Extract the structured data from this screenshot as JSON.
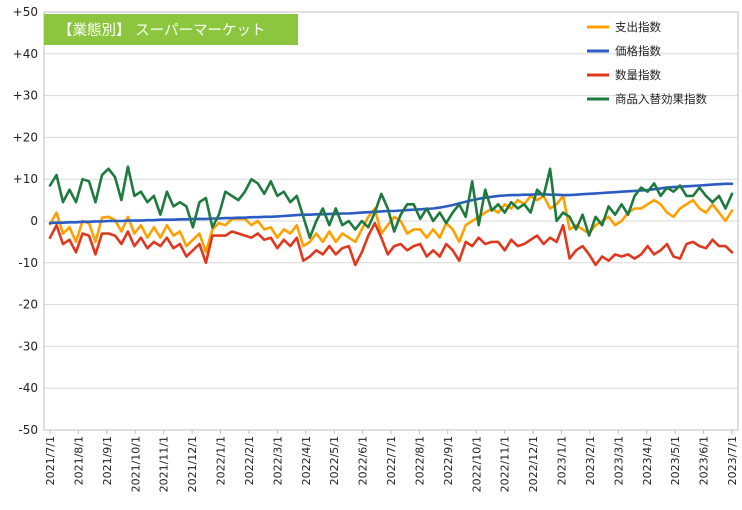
{
  "chart_data": {
    "type": "line",
    "title": "【業態別】 スーパーマーケット",
    "xlabel": "",
    "ylabel": "",
    "ylim": [
      -50,
      50
    ],
    "yticks": [
      -50,
      -40,
      -30,
      -20,
      -10,
      0,
      10,
      20,
      30,
      40,
      50
    ],
    "ytick_labels": [
      "-50",
      "-40",
      "-30",
      "-20",
      "-10",
      "0",
      "+10",
      "+20",
      "+30",
      "+40",
      "+50"
    ],
    "x_tick_labels": [
      "2021/7/1",
      "2021/8/1",
      "2021/9/1",
      "2021/10/1",
      "2021/11/1",
      "2021/12/1",
      "2022/1/1",
      "2022/2/1",
      "2022/3/1",
      "2022/4/1",
      "2022/5/1",
      "2022/6/1",
      "2022/7/1",
      "2022/8/1",
      "2022/9/1",
      "2022/10/1",
      "2022/11/1",
      "2022/12/1",
      "2023/1/1",
      "2023/2/1",
      "2023/3/1",
      "2023/4/1",
      "2023/5/1",
      "2023/6/1",
      "2023/7/1"
    ],
    "x_count": 106,
    "grid": "horizontal",
    "legend_position": "top-right",
    "colors": {
      "title_bg": "#8cc63f",
      "grid": "#d9d9d9",
      "axis": "#bfbfbf"
    },
    "series": [
      {
        "name": "支出指数",
        "color": "#ffa000",
        "values": [
          -0.8,
          2,
          -3,
          -1.5,
          -5,
          0,
          -0.5,
          -5,
          0.8,
          1,
          0.2,
          -2.5,
          1,
          -3,
          -1,
          -4,
          -1.5,
          -4,
          -1,
          -3.5,
          -2.5,
          -6,
          -4.5,
          -3,
          -7.5,
          -2,
          -0.5,
          -1,
          0.5,
          0.5,
          0.5,
          -1,
          0,
          -2,
          -1.5,
          -4,
          -2,
          -3,
          -1,
          -6,
          -5,
          -3,
          -5,
          -2.5,
          -5,
          -3,
          -4,
          -5,
          -2,
          1,
          3,
          -3,
          -1,
          1,
          0,
          -3,
          -2,
          -2,
          -4,
          -2,
          -4,
          -0.5,
          -2,
          -5,
          -1,
          0,
          1,
          2,
          3,
          2,
          4,
          3,
          5,
          4,
          6,
          5,
          6,
          3,
          4,
          6,
          -2,
          -1,
          -2,
          -3,
          -1,
          0,
          1,
          -1,
          0,
          2,
          3,
          3,
          4,
          5,
          4,
          2,
          1,
          3,
          4,
          5,
          3,
          2,
          4,
          2,
          0,
          2.5
        ],
        "show_in_legend": true
      },
      {
        "name": "価格指数",
        "color": "#2a5cc4",
        "values": [
          -0.5,
          -0.4,
          -0.4,
          -0.3,
          -0.3,
          -0.2,
          -0.2,
          -0.1,
          -0.1,
          0,
          0,
          0,
          0.1,
          0.1,
          0.1,
          0.2,
          0.2,
          0.3,
          0.3,
          0.3,
          0.4,
          0.4,
          0.5,
          0.5,
          0.5,
          0.6,
          0.6,
          0.7,
          0.7,
          0.8,
          0.8,
          0.9,
          0.9,
          1,
          1,
          1.1,
          1.2,
          1.3,
          1.4,
          1.5,
          1.5,
          1.6,
          1.6,
          1.7,
          1.7,
          1.8,
          1.8,
          1.9,
          2,
          2.1,
          2.2,
          2.3,
          2.4,
          2.4,
          2.5,
          2.6,
          2.7,
          2.8,
          2.9,
          3,
          3.2,
          3.5,
          3.8,
          4.2,
          4.6,
          5,
          5.3,
          5.6,
          5.8,
          6,
          6.1,
          6.2,
          6.2,
          6.3,
          6.3,
          6.4,
          6.4,
          6.3,
          6.3,
          6.2,
          6.2,
          6.3,
          6.4,
          6.5,
          6.6,
          6.7,
          6.8,
          6.9,
          7,
          7.1,
          7.2,
          7.3,
          7.4,
          7.6,
          7.8,
          8,
          8.1,
          8.2,
          8.3,
          8.4,
          8.5,
          8.6,
          8.7,
          8.8,
          8.9,
          8.9
        ],
        "show_in_legend": true
      },
      {
        "name": "数量指数",
        "color": "#e0381e",
        "values": [
          -4,
          -1,
          -5.5,
          -4.5,
          -7.5,
          -3,
          -3.5,
          -8,
          -3,
          -3,
          -3.5,
          -5.5,
          -2.5,
          -6,
          -4,
          -6.5,
          -5,
          -6,
          -4,
          -6.5,
          -5.5,
          -8.5,
          -7,
          -5.5,
          -10,
          -3.5,
          -3.5,
          -3.5,
          -2.5,
          -3,
          -3.5,
          -4,
          -3,
          -4.5,
          -4,
          -6.5,
          -4.5,
          -6,
          -4,
          -9.5,
          -8.5,
          -7,
          -8,
          -6,
          -8,
          -6.5,
          -6,
          -10.5,
          -7.5,
          -3.5,
          -0.5,
          -4,
          -8,
          -6,
          -5.5,
          -7,
          -6,
          -5.5,
          -8.5,
          -7,
          -8.5,
          -5.5,
          -7,
          -9.5,
          -5,
          -6,
          -4,
          -5.5,
          -5,
          -5,
          -7,
          -4.5,
          -6,
          -5.5,
          -4.5,
          -3.5,
          -5.5,
          -4,
          -5,
          -1,
          -9,
          -7,
          -6,
          -8,
          -10.5,
          -8.5,
          -9.5,
          -8,
          -8.5,
          -8,
          -9,
          -8,
          -6,
          -8,
          -7,
          -5.5,
          -8.5,
          -9,
          -5.5,
          -5,
          -6,
          -6.5,
          -4.5,
          -6,
          -6,
          -7.5
        ],
        "show_in_legend": true
      },
      {
        "name": "商品入替効果指数",
        "color": "#1e7a3e",
        "values": [
          8.5,
          11,
          4.5,
          7.5,
          4.5,
          10,
          9.5,
          4.5,
          11,
          12.5,
          10.5,
          5,
          13,
          6,
          7,
          4.5,
          6,
          1.5,
          7,
          3.5,
          4.5,
          3.5,
          -1.5,
          4.5,
          5.5,
          -1.5,
          1.5,
          7,
          6,
          5,
          7,
          10,
          9,
          6.5,
          9.5,
          6,
          7,
          4.5,
          6,
          1,
          -4,
          0,
          3,
          -1,
          3,
          -1,
          0,
          -2,
          0,
          -1.5,
          2,
          6.5,
          3,
          -2.5,
          1.5,
          4,
          4,
          0.5,
          3,
          0,
          2,
          -0.5,
          2,
          4,
          1,
          9.5,
          -1,
          7.5,
          2.5,
          4,
          2,
          4.5,
          3,
          4,
          2,
          7.5,
          6,
          12.5,
          0,
          2,
          1,
          -2,
          1.5,
          -3.5,
          1,
          -1,
          3.5,
          1.5,
          4,
          1.5,
          6,
          8,
          7,
          9,
          6,
          8,
          7,
          8.5,
          6,
          6,
          8,
          6,
          4.5,
          6,
          3,
          6.5
        ],
        "show_in_legend": true
      }
    ]
  }
}
